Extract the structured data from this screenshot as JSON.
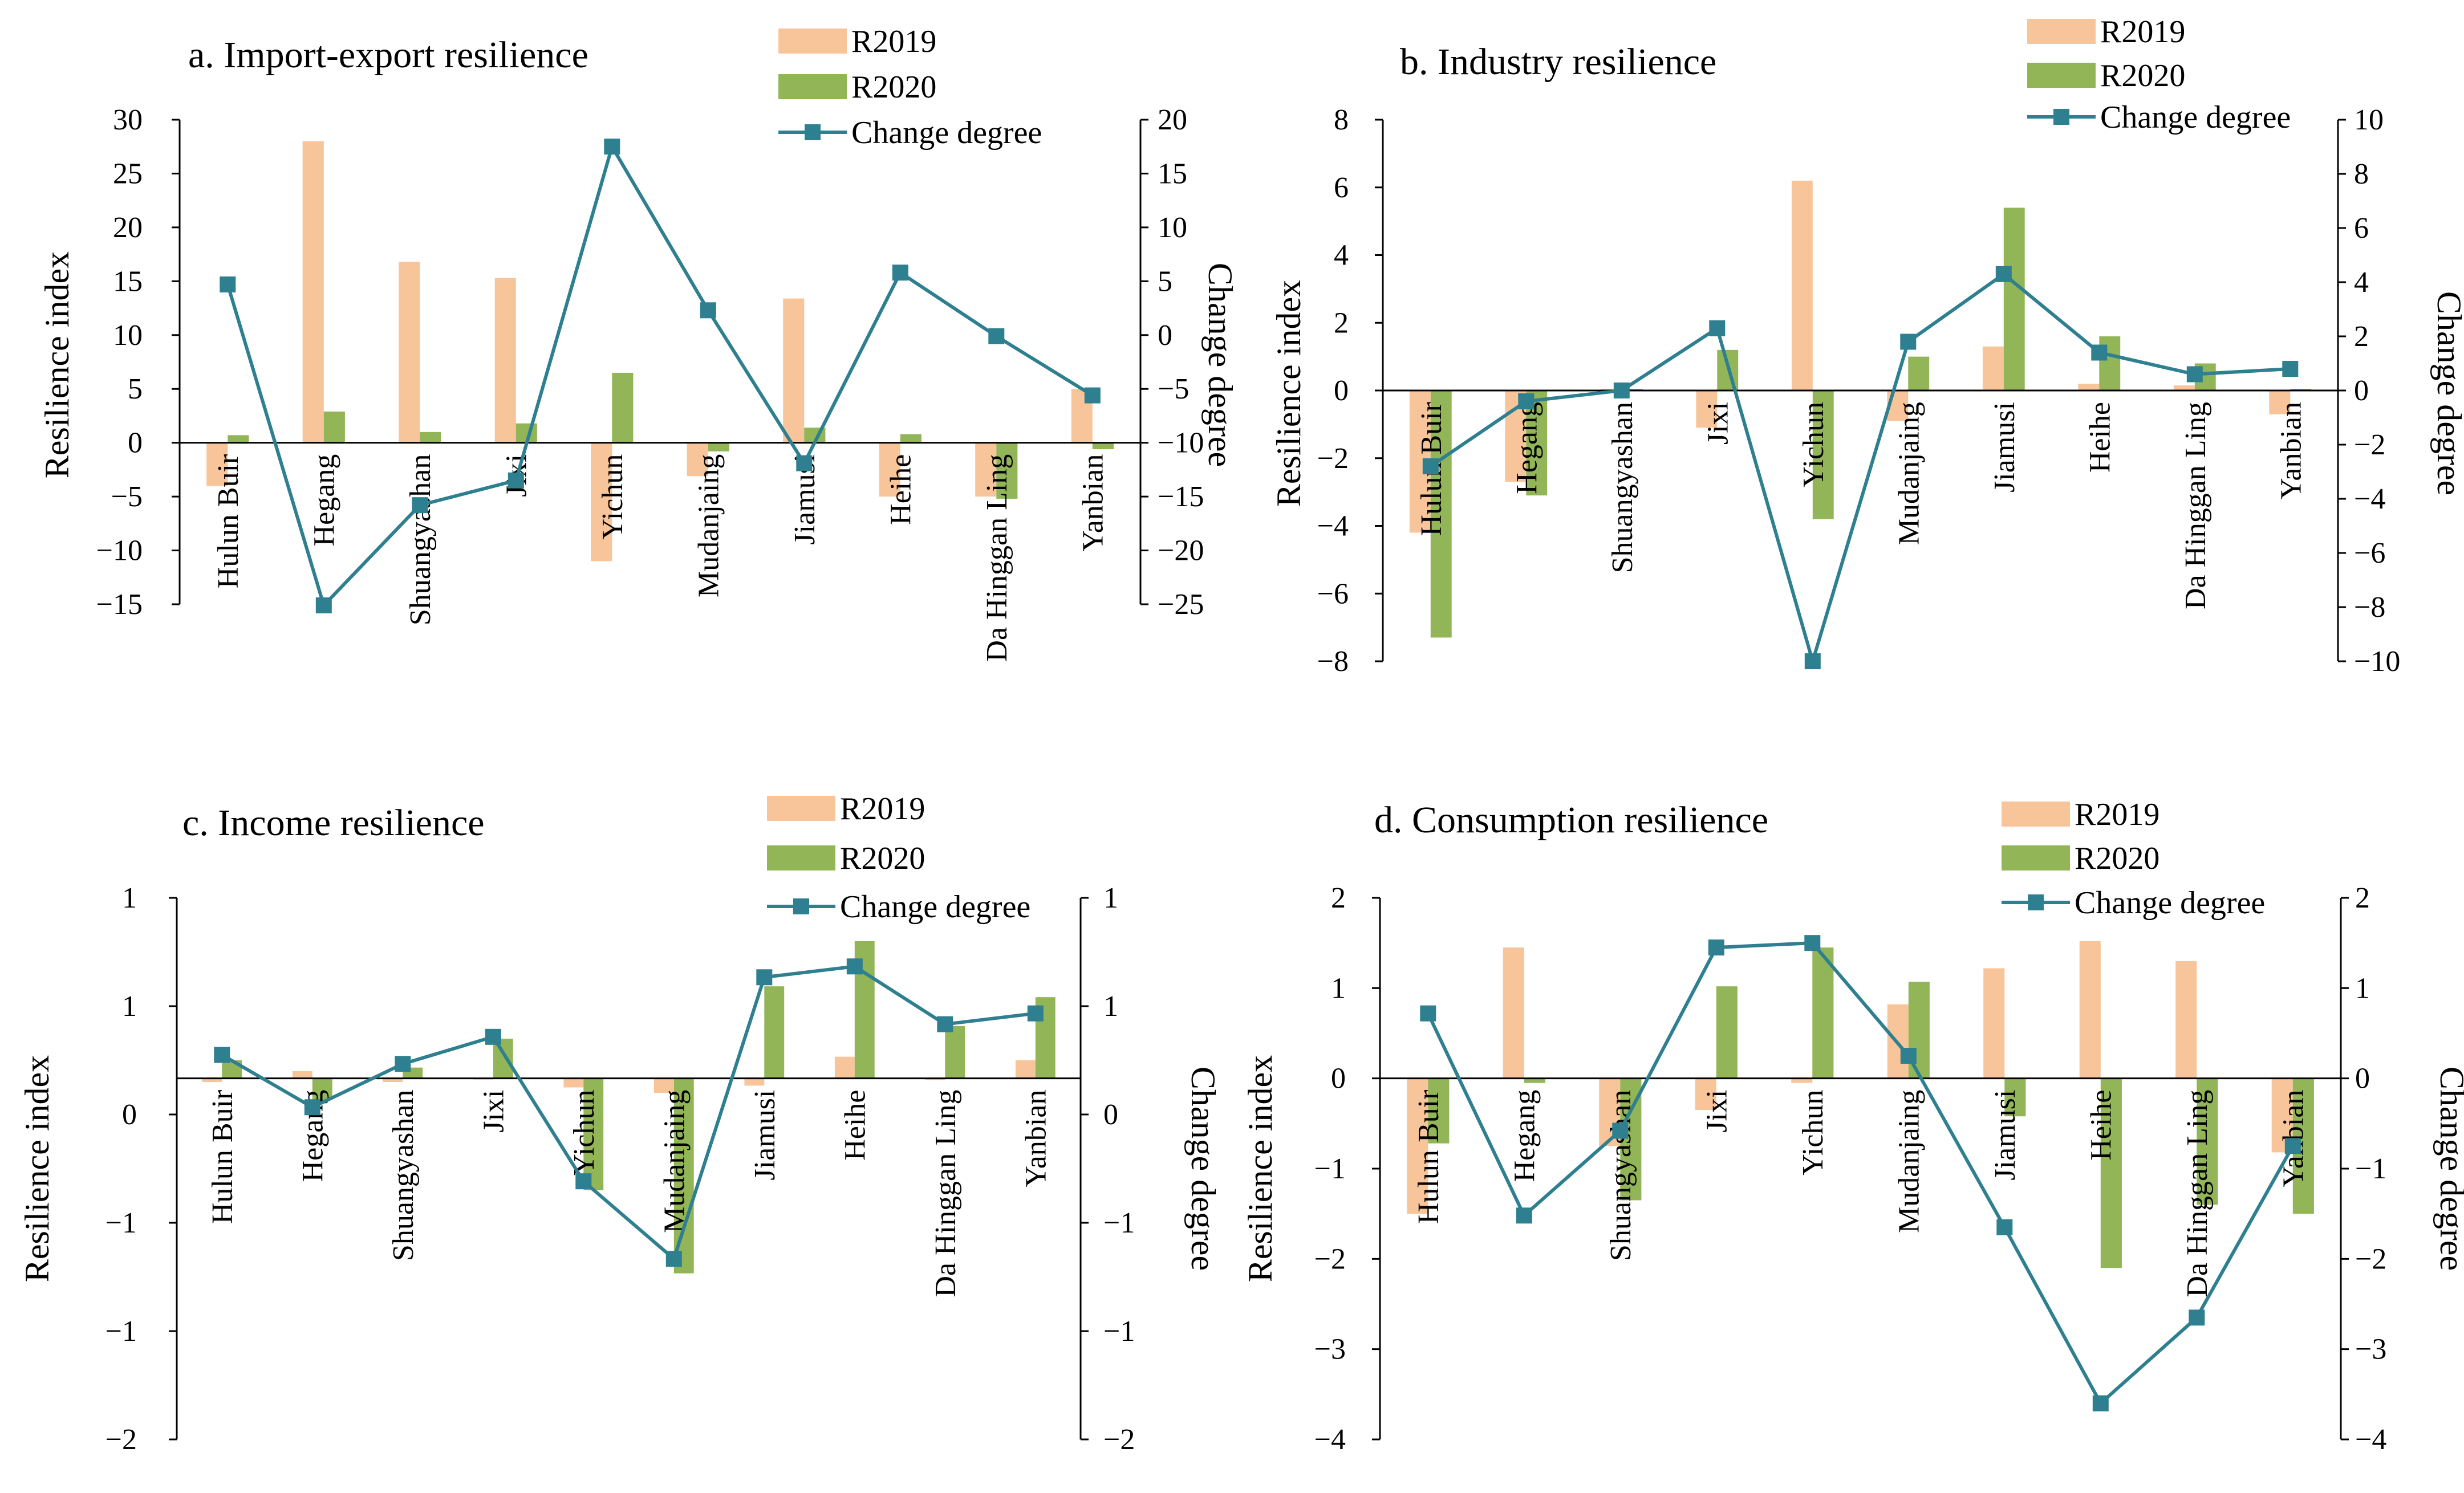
{
  "colors": {
    "r2019": "#F8C59A",
    "r2020": "#92B558",
    "change": "#2E7F8F"
  },
  "chart_data": [
    {
      "type": "bar+line",
      "title": "a. Import-export resilience",
      "categories": [
        "Hulun Buir",
        "Hegang",
        "Shuangyashan",
        "Jixi",
        "Yichun",
        "Mudanjaing",
        "Jiamusi",
        "Heihe",
        "Da Hinggan Ling",
        "Yanbian"
      ],
      "series": [
        {
          "name": "R2019",
          "type": "bar",
          "axis": "left",
          "values": [
            -4,
            28,
            16.8,
            15.3,
            -11,
            -3.1,
            13.4,
            -5,
            -5,
            5
          ]
        },
        {
          "name": "R2020",
          "type": "bar",
          "axis": "left",
          "values": [
            0.7,
            2.9,
            1.0,
            1.8,
            6.5,
            -0.8,
            1.4,
            0.8,
            -5.2,
            -0.6
          ]
        },
        {
          "name": "Change degree",
          "type": "line",
          "axis": "right",
          "values": [
            4.7,
            -25.1,
            -15.8,
            -13.5,
            17.5,
            2.3,
            -11.9,
            5.8,
            -0.1,
            -5.6
          ]
        }
      ],
      "ylabel": "Resilience index",
      "y2label": "Change degree",
      "ylim": [
        -15,
        30
      ],
      "yticks": [
        30,
        25,
        20,
        15,
        10,
        5,
        0,
        -5,
        -10,
        -15
      ],
      "y2lim": [
        -25,
        20
      ],
      "y2ticks": [
        20,
        15,
        10,
        5,
        0,
        -5,
        -10,
        -15,
        -20,
        -25
      ],
      "legend": [
        "R2019",
        "R2020",
        "Change degree"
      ]
    },
    {
      "type": "bar+line",
      "title": "b. Industry resilience",
      "categories": [
        "Hulun Buir",
        "Hegang",
        "Shuangyashan",
        "Jixi",
        "Yichun",
        "Mudanjaing",
        "Jiamusi",
        "Heihe",
        "Da Hinggan Ling",
        "Yanbian"
      ],
      "series": [
        {
          "name": "R2019",
          "type": "bar",
          "axis": "left",
          "values": [
            -4.2,
            -2.7,
            0.05,
            -1.1,
            6.2,
            -0.9,
            1.3,
            0.2,
            0.15,
            -0.7
          ]
        },
        {
          "name": "R2020",
          "type": "bar",
          "axis": "left",
          "values": [
            -7.3,
            -3.1,
            0.05,
            1.2,
            -3.8,
            1.0,
            5.4,
            1.6,
            0.8,
            0.05
          ]
        },
        {
          "name": "Change degree",
          "type": "line",
          "axis": "right",
          "values": [
            -2.8,
            -0.4,
            0.0,
            2.3,
            -10.0,
            1.8,
            4.3,
            1.4,
            0.6,
            0.8
          ]
        }
      ],
      "ylabel": "Resilience index",
      "y2label": "Change degree",
      "ylim": [
        -8,
        8
      ],
      "yticks": [
        8,
        6,
        4,
        2,
        0,
        -2,
        -4,
        -6,
        -8
      ],
      "y2lim": [
        -10,
        10
      ],
      "y2ticks": [
        10,
        8,
        6,
        4,
        2,
        0,
        -2,
        -4,
        -6,
        -8,
        -10
      ],
      "legend": [
        "R2019",
        "R2020",
        "Change degree"
      ]
    },
    {
      "type": "bar+line",
      "title": "c. Income resilience",
      "categories": [
        "Hulun Buir",
        "Hegang",
        "Shuangyashan",
        "Jixi",
        "Yichun",
        "Mudanjaing",
        "Jiamusi",
        "Heihe",
        "Da Hinggan Ling",
        "Yanbian"
      ],
      "series": [
        {
          "name": "R2019",
          "type": "bar",
          "axis": "left",
          "values": [
            -0.02,
            0.04,
            -0.02,
            0.0,
            -0.05,
            -0.08,
            -0.04,
            0.12,
            -0.01,
            0.1
          ]
        },
        {
          "name": "R2020",
          "type": "bar",
          "axis": "left",
          "values": [
            0.1,
            -0.12,
            0.06,
            0.22,
            -0.62,
            -1.08,
            0.51,
            0.76,
            0.29,
            0.45
          ]
        },
        {
          "name": "Change degree",
          "type": "line",
          "axis": "right",
          "values": [
            0.13,
            -0.16,
            0.08,
            0.23,
            -0.57,
            -1.0,
            0.56,
            0.62,
            0.3,
            0.36
          ]
        }
      ],
      "ylabel": "Resilience index",
      "y2label": "Change degree",
      "ylim": [
        -2,
        1
      ],
      "yticks": [
        "1",
        "1",
        "0",
        "−1",
        "−1",
        "−2"
      ],
      "y2lim": [
        -2,
        1
      ],
      "y2ticks": [
        "1",
        "1",
        "0",
        "−1",
        "−1",
        "−2"
      ],
      "legend": [
        "R2019",
        "R2020",
        "Change degree"
      ]
    },
    {
      "type": "bar+line",
      "title": "d. Consumption resilience",
      "categories": [
        "Hulun Buir",
        "Hegang",
        "Shuangyashan",
        "Jixi",
        "Yichun",
        "Mudanjaing",
        "Jiamusi",
        "Heihe",
        "Da Hinggan Ling",
        "Yanbian"
      ],
      "series": [
        {
          "name": "R2019",
          "type": "bar",
          "axis": "left",
          "values": [
            -1.5,
            1.45,
            -0.75,
            -0.35,
            -0.05,
            0.82,
            1.22,
            1.52,
            1.3,
            -0.82
          ]
        },
        {
          "name": "R2020",
          "type": "bar",
          "axis": "left",
          "values": [
            -0.72,
            -0.05,
            -1.35,
            1.02,
            1.45,
            1.07,
            -0.42,
            -2.1,
            -1.4,
            -1.5
          ]
        },
        {
          "name": "Change degree",
          "type": "line",
          "axis": "right",
          "values": [
            0.72,
            -1.52,
            -0.58,
            1.45,
            1.5,
            0.25,
            -1.65,
            -3.6,
            -2.65,
            -0.75
          ]
        }
      ],
      "ylabel": "Resilience index",
      "y2label": "Change degree",
      "ylim": [
        -4,
        2
      ],
      "yticks": [
        2,
        1,
        0,
        -1,
        -2,
        -3,
        -4
      ],
      "y2lim": [
        -4,
        2
      ],
      "y2ticks": [
        2,
        1,
        0,
        -1,
        -2,
        -3,
        -4
      ],
      "legend": [
        "R2019",
        "R2020",
        "Change degree"
      ]
    }
  ]
}
